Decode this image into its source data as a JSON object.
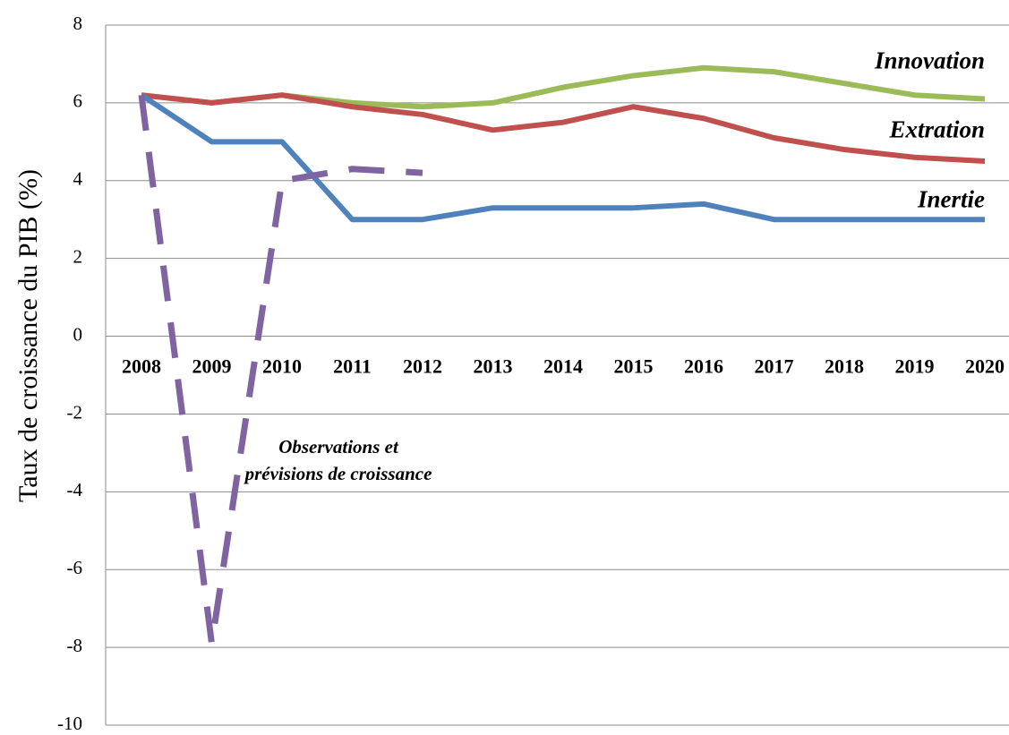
{
  "chart_data": {
    "type": "line",
    "y_label": "Taux de croissance du PIB (%)",
    "categories": [
      "2008",
      "2009",
      "2010",
      "2011",
      "2012",
      "2013",
      "2014",
      "2015",
      "2016",
      "2017",
      "2018",
      "2019",
      "2020"
    ],
    "series": [
      {
        "name": "Innovation",
        "color": "#9bbb59",
        "line_style": "solid",
        "values": [
          6.2,
          6.0,
          6.2,
          6.0,
          5.9,
          6.0,
          6.4,
          6.7,
          6.9,
          6.8,
          6.5,
          6.2,
          6.1
        ]
      },
      {
        "name": "Extration",
        "color": "#c0504d",
        "line_style": "solid",
        "values": [
          6.2,
          6.0,
          6.2,
          5.9,
          5.7,
          5.3,
          5.5,
          5.9,
          5.6,
          5.1,
          4.8,
          4.6,
          4.5
        ]
      },
      {
        "name": "Inertie",
        "color": "#4f81bd",
        "line_style": "solid",
        "values": [
          6.2,
          5.0,
          5.0,
          3.0,
          3.0,
          3.3,
          3.3,
          3.3,
          3.4,
          3.0,
          3.0,
          3.0,
          3.0
        ]
      },
      {
        "name": "Observations et prévisions de croissance",
        "color": "#8064a2",
        "line_style": "dashed",
        "values": [
          6.2,
          -7.9,
          4.0,
          4.3,
          4.2,
          null,
          null,
          null,
          null,
          null,
          null,
          null,
          null
        ]
      }
    ],
    "ylim": [
      -10,
      8
    ],
    "yticks": [
      -10,
      -8,
      -6,
      -4,
      -2,
      0,
      2,
      4,
      6,
      8
    ],
    "grid": true
  }
}
